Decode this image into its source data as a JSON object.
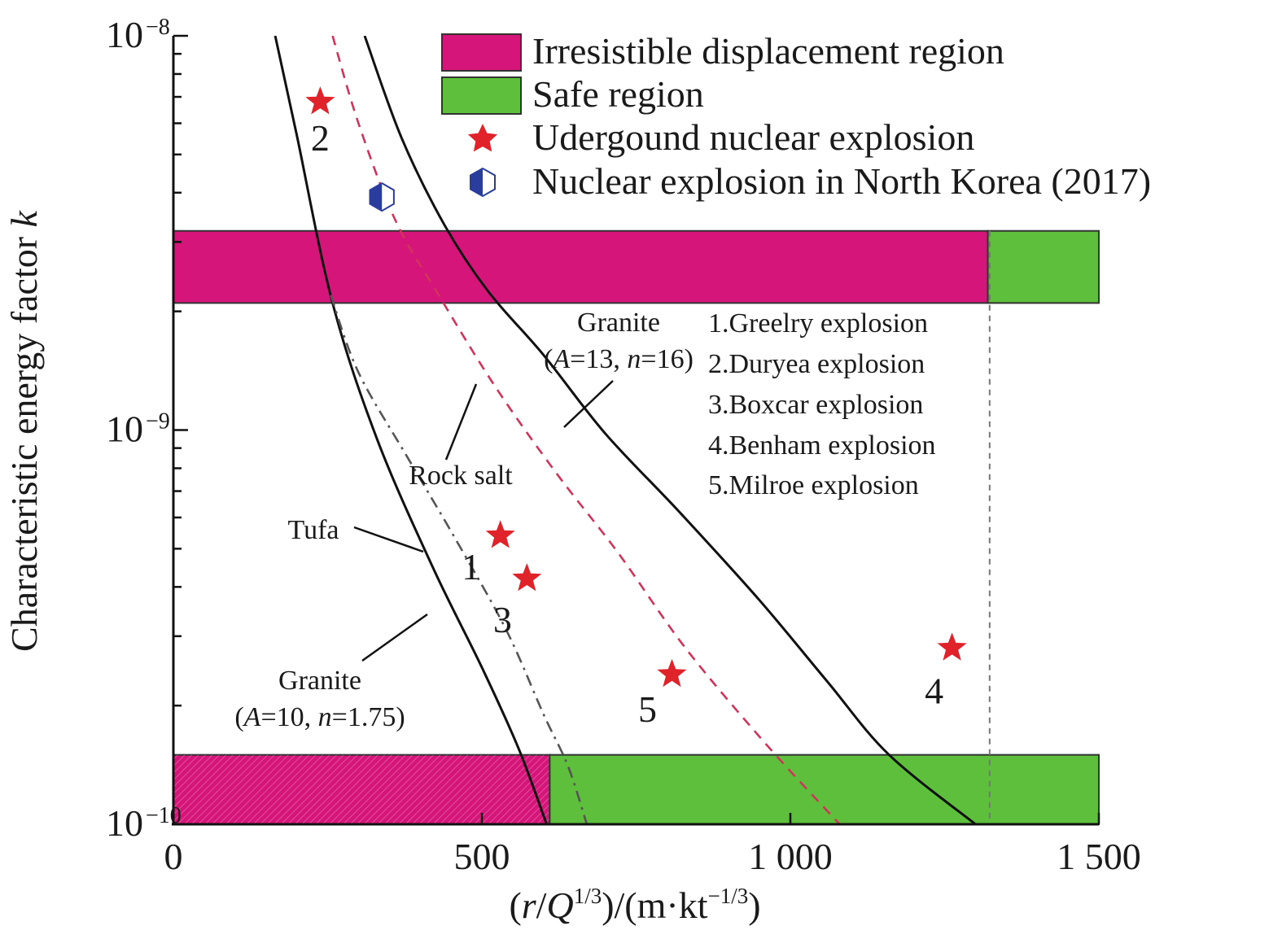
{
  "chart_data": {
    "type": "line",
    "xlabel_parts": [
      "(",
      "r",
      "/",
      "Q",
      "1/3",
      ")/(m·kt",
      "−1/3",
      ")"
    ],
    "ylabel_parts": [
      "Characteristic energy factor ",
      "k"
    ],
    "xlim": [
      0,
      1500
    ],
    "ylim": [
      1e-10,
      1e-08
    ],
    "yscale": "log",
    "x_ticks": [
      {
        "value": 0,
        "label": "0"
      },
      {
        "value": 500,
        "label": "500"
      },
      {
        "value": 1000,
        "label": "1 000"
      },
      {
        "value": 1500,
        "label": "1 500"
      }
    ],
    "y_ticks": [
      {
        "value": 1e-10,
        "base": "10",
        "exp": "−10"
      },
      {
        "value": 1e-09,
        "base": "10",
        "exp": "−9"
      },
      {
        "value": 1e-08,
        "base": "10",
        "exp": "−8"
      }
    ],
    "legend": {
      "placement": "top-right",
      "items": [
        {
          "label": "Irresistible displacement region",
          "color": "#d6157a"
        },
        {
          "label": "Safe region",
          "color": "#5dbf3c"
        },
        {
          "label": "Udergound nuclear explosion",
          "color": "#e0232b"
        },
        {
          "label": "Nuclear explosion in North Korea (2017)",
          "color": "#2b3d9c"
        }
      ]
    },
    "regions": [
      {
        "type": "irresistible",
        "x": [
          0,
          1320
        ],
        "y": [
          2.1e-09,
          3.2e-09
        ],
        "color": "#d6157a"
      },
      {
        "type": "safe",
        "x": [
          1320,
          1500
        ],
        "y": [
          2.1e-09,
          3.2e-09
        ],
        "color": "#5dbf3c"
      },
      {
        "type": "irresistible",
        "x": [
          0,
          610
        ],
        "y": [
          1e-10,
          1.5e-10
        ],
        "color": "#d6157a"
      },
      {
        "type": "safe",
        "x": [
          610,
          1500
        ],
        "y": [
          1e-10,
          1.5e-10
        ],
        "color": "#5dbf3c"
      }
    ],
    "reference_line": {
      "x": 1323
    },
    "series": [
      {
        "key": "granite_10",
        "style": "solid",
        "color": "#111111",
        "points": [
          [
            165,
            1e-08
          ],
          [
            200,
            5.6e-09
          ],
          [
            258,
            2.1e-09
          ],
          [
            330,
            9.5e-10
          ],
          [
            420,
            4.5e-10
          ],
          [
            500,
            2.5e-10
          ],
          [
            560,
            1.55e-10
          ],
          [
            605,
            1e-10
          ]
        ]
      },
      {
        "key": "granite_13",
        "style": "solid",
        "color": "#111111",
        "points": [
          [
            310,
            1e-08
          ],
          [
            370,
            5.5e-09
          ],
          [
            440,
            3.3e-09
          ],
          [
            510,
            2.25e-09
          ],
          [
            600,
            1.55e-09
          ],
          [
            700,
            9.8e-10
          ],
          [
            820,
            6.2e-10
          ],
          [
            950,
            3.7e-10
          ],
          [
            1060,
            2.3e-10
          ],
          [
            1160,
            1.5e-10
          ],
          [
            1300,
            1e-10
          ]
        ]
      },
      {
        "key": "rock_salt",
        "style": "dashed",
        "color": "#d0345a",
        "points": [
          [
            258,
            1e-08
          ],
          [
            300,
            6e-09
          ],
          [
            360,
            3.4e-09
          ],
          [
            430,
            2.2e-09
          ],
          [
            520,
            1.3e-09
          ],
          [
            620,
            7.8e-10
          ],
          [
            720,
            4.9e-10
          ],
          [
            830,
            2.8e-10
          ],
          [
            960,
            1.6e-10
          ],
          [
            1080,
            1e-10
          ]
        ]
      },
      {
        "key": "tufa",
        "style": "dashdot",
        "color": "#555555",
        "points": [
          [
            255,
            2.2e-09
          ],
          [
            300,
            1.4e-09
          ],
          [
            380,
            8.5e-10
          ],
          [
            460,
            5.2e-10
          ],
          [
            540,
            3.1e-10
          ],
          [
            600,
            1.9e-10
          ],
          [
            640,
            1.4e-10
          ],
          [
            670,
            1e-10
          ]
        ]
      }
    ],
    "explosions": [
      {
        "id": "1",
        "x": 530,
        "y": 5.4e-10
      },
      {
        "id": "2",
        "x": 238,
        "y": 6.8e-09
      },
      {
        "id": "3",
        "x": 573,
        "y": 4.2e-10
      },
      {
        "id": "4",
        "x": 1262,
        "y": 2.8e-10
      },
      {
        "id": "5",
        "x": 808,
        "y": 2.4e-10
      }
    ],
    "north_korea": {
      "x": 338,
      "y": 3.9e-09
    },
    "curve_labels": {
      "granite13_name": "Granite",
      "granite13_params": [
        "(",
        "A",
        "=13, ",
        "n",
        "=16)"
      ],
      "granite10_name": "Granite",
      "granite10_params": [
        "(",
        "A",
        "=10, ",
        "n",
        "=1.75)"
      ],
      "rock_salt": "Rock salt",
      "tufa": "Tufa"
    },
    "explosion_list": [
      "1.Greelry explosion",
      "2.Duryea explosion",
      "3.Boxcar explosion",
      "4.Benham explosion",
      "5.Milroe explosion"
    ]
  }
}
